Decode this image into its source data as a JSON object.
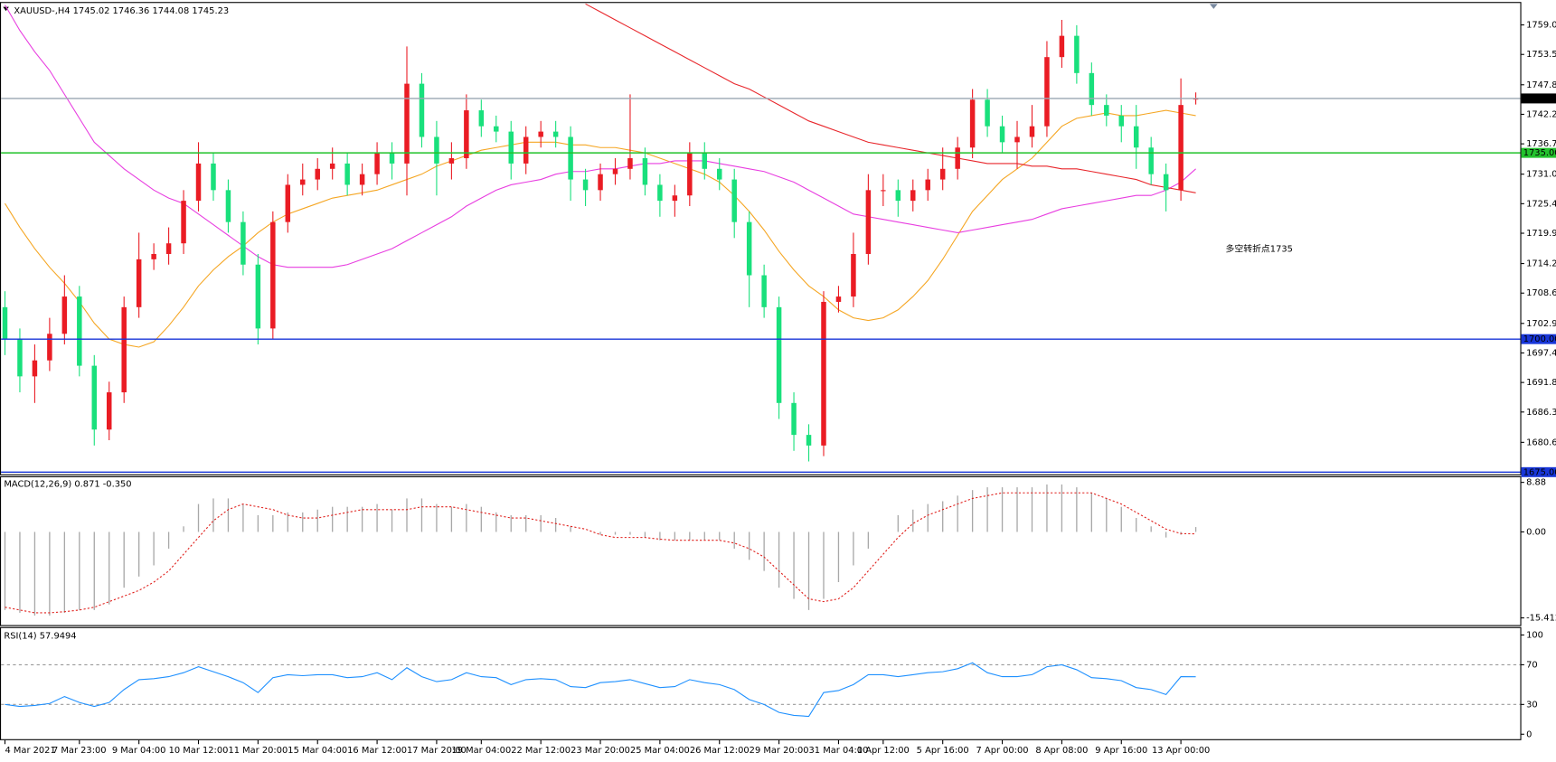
{
  "chart_data": [
    {
      "type": "candlestick",
      "title": "XAUUSD-,H4  1745.02 1746.36 1744.08 1745.23",
      "annotation": "多空转折点1735",
      "annotation_color": "#e8161c",
      "up_color": "#ea1c24",
      "down_color": "#19e07c",
      "categories": [
        "4 Mar 2021",
        null,
        null,
        null,
        null,
        "7 Mar 23:00",
        null,
        null,
        null,
        "9 Mar 04:00",
        null,
        null,
        null,
        "10 Mar 12:00",
        null,
        null,
        null,
        "11 Mar 20:00",
        null,
        null,
        null,
        "15 Mar 04:00",
        null,
        null,
        null,
        "16 Mar 12:00",
        null,
        null,
        null,
        "17 Mar 20:00",
        null,
        null,
        "19 Mar 04:00",
        null,
        null,
        null,
        "22 Mar 12:00",
        null,
        null,
        null,
        "23 Mar 20:00",
        null,
        null,
        null,
        "25 Mar 04:00",
        null,
        null,
        null,
        "26 Mar 12:00",
        null,
        null,
        null,
        "29 Mar 20:00",
        null,
        null,
        null,
        "31 Mar 04:00",
        null,
        null,
        "1 Apr 12:00",
        null,
        null,
        null,
        "5 Apr 16:00",
        null,
        null,
        null,
        "7 Apr 00:00",
        null,
        null,
        null,
        "8 Apr 08:00",
        null,
        null,
        null,
        "9 Apr 16:00",
        null,
        null,
        null,
        "13 Apr 00:00",
        null
      ],
      "open": [
        1706,
        1700,
        1693,
        1696,
        1701,
        1708,
        1695,
        1683,
        1690,
        1706,
        1715,
        1716,
        1718,
        1726,
        1733,
        1728,
        1722,
        1714,
        1702,
        1722,
        1729,
        1730,
        1732,
        1733,
        1729,
        1731,
        1735,
        1733,
        1748,
        1738,
        1733,
        1734,
        1743,
        1740,
        1739,
        1733,
        1738,
        1739,
        1738,
        1730,
        1728,
        1731,
        1732,
        1734,
        1729,
        1726,
        1727,
        1735,
        1732,
        1730,
        1722,
        1712,
        1706,
        1688,
        1682,
        1680,
        1707,
        1708,
        1716,
        1728,
        1728,
        1726,
        1728,
        1730,
        1732,
        1736,
        1745,
        1740,
        1737,
        1738,
        1740,
        1753,
        1757,
        1750,
        1744,
        1742,
        1740,
        1736,
        1731,
        1728,
        1745.02
      ],
      "high": [
        1709,
        1702,
        1699,
        1704,
        1712,
        1710,
        1697,
        1692,
        1708,
        1720,
        1718,
        1721,
        1728,
        1737,
        1735,
        1730,
        1724,
        1716,
        1724,
        1731,
        1733,
        1734,
        1736,
        1735,
        1733,
        1737,
        1737,
        1755,
        1750,
        1741,
        1737,
        1746,
        1745,
        1742,
        1741,
        1740,
        1741,
        1741,
        1740,
        1732,
        1733,
        1734,
        1746,
        1736,
        1731,
        1729,
        1737,
        1737,
        1734,
        1732,
        1724,
        1714,
        1708,
        1690,
        1684,
        1709,
        1710,
        1720,
        1731,
        1731,
        1730,
        1730,
        1732,
        1736,
        1738,
        1747,
        1747,
        1742,
        1741,
        1744,
        1756,
        1760,
        1759,
        1752,
        1746,
        1744,
        1744,
        1738,
        1733,
        1749,
        1746.36
      ],
      "low": [
        1697,
        1690,
        1688,
        1694,
        1699,
        1693,
        1680,
        1681,
        1688,
        1704,
        1713,
        1714,
        1716,
        1724,
        1726,
        1720,
        1712,
        1699,
        1700,
        1720,
        1727,
        1728,
        1730,
        1727,
        1727,
        1729,
        1730,
        1727,
        1736,
        1727,
        1730,
        1732,
        1738,
        1737,
        1730,
        1731,
        1736,
        1736,
        1726,
        1725,
        1726,
        1729,
        1730,
        1727,
        1723,
        1723,
        1725,
        1730,
        1728,
        1719,
        1706,
        1704,
        1685,
        1679,
        1677,
        1678,
        1705,
        1706,
        1714,
        1725,
        1723,
        1724,
        1726,
        1728,
        1730,
        1734,
        1738,
        1735,
        1732,
        1736,
        1738,
        1751,
        1748,
        1742,
        1740,
        1737,
        1732,
        1729,
        1724,
        1726,
        1744.08
      ],
      "close": [
        1700,
        1693,
        1696,
        1701,
        1708,
        1695,
        1683,
        1690,
        1706,
        1715,
        1716,
        1718,
        1726,
        1733,
        1728,
        1722,
        1714,
        1702,
        1722,
        1729,
        1730,
        1732,
        1733,
        1729,
        1731,
        1735,
        1733,
        1748,
        1738,
        1733,
        1734,
        1743,
        1740,
        1739,
        1733,
        1738,
        1739,
        1738,
        1730,
        1728,
        1731,
        1732,
        1734,
        1729,
        1726,
        1727,
        1735,
        1732,
        1730,
        1722,
        1712,
        1706,
        1688,
        1682,
        1680,
        1707,
        1708,
        1716,
        1728,
        1728,
        1726,
        1728,
        1730,
        1732,
        1736,
        1745,
        1740,
        1737,
        1738,
        1740,
        1753,
        1757,
        1750,
        1744,
        1742,
        1740,
        1736,
        1731,
        1728,
        1744,
        1745.23
      ],
      "lines": [
        {
          "color": "#f5a623",
          "values": [
            1725.5,
            1721,
            1717,
            1713.5,
            1710.5,
            1707,
            1703,
            1700,
            1699,
            1698.5,
            1699.5,
            1702.5,
            1706,
            1710,
            1713,
            1715.5,
            1717.5,
            1720,
            1722,
            1723.5,
            1724.5,
            1725.5,
            1726.5,
            1727,
            1727.5,
            1728,
            1729,
            1730,
            1731,
            1732.5,
            1733.5,
            1734.5,
            1735.5,
            1736,
            1736.5,
            1737,
            1737,
            1737,
            1736.5,
            1736.5,
            1736,
            1736,
            1735.5,
            1735,
            1734,
            1733,
            1732,
            1731,
            1729.5,
            1727,
            1724,
            1720.5,
            1716.5,
            1713,
            1710,
            1708,
            1705.5,
            1704,
            1703.5,
            1704,
            1705.5,
            1708,
            1711,
            1715,
            1719.5,
            1724,
            1727,
            1730,
            1732,
            1734,
            1737,
            1740,
            1741.5,
            1742,
            1742.5,
            1742,
            1742,
            1742.5,
            1743,
            1742.5,
            1742
          ]
        },
        {
          "color": "#e83ee0",
          "values": [
            1762.8,
            1758,
            1754,
            1750.5,
            1746,
            1741.5,
            1737,
            1734.5,
            1732,
            1730,
            1728,
            1726.5,
            1725.5,
            1723.5,
            1721.5,
            1719.5,
            1717.5,
            1715.5,
            1714,
            1713.5,
            1713.5,
            1713.5,
            1713.5,
            1714,
            1715,
            1716,
            1717,
            1718.5,
            1720,
            1721.5,
            1723,
            1725,
            1726.5,
            1728,
            1729,
            1729.5,
            1730,
            1731,
            1731.5,
            1731.5,
            1732,
            1732,
            1732.5,
            1733,
            1733,
            1733.5,
            1733.5,
            1733.5,
            1733,
            1732.5,
            1732,
            1731.5,
            1730.5,
            1729.5,
            1728,
            1726.5,
            1725,
            1723.5,
            1723,
            1722.5,
            1722,
            1721.5,
            1721,
            1720.5,
            1720,
            1720.5,
            1721,
            1721.5,
            1722,
            1722.5,
            1723.5,
            1724.5,
            1725,
            1725.5,
            1726,
            1726.5,
            1727,
            1727,
            1728,
            1729.5,
            1732
          ]
        },
        {
          "color": "#e8262b",
          "values": [
            null,
            null,
            null,
            null,
            null,
            null,
            null,
            null,
            null,
            null,
            null,
            null,
            null,
            null,
            null,
            null,
            null,
            null,
            null,
            null,
            null,
            null,
            null,
            null,
            null,
            null,
            null,
            null,
            null,
            null,
            null,
            null,
            null,
            null,
            null,
            null,
            null,
            null,
            null,
            1763,
            1761.5,
            1760,
            1758.5,
            1757,
            1755.5,
            1754,
            1752.5,
            1751,
            1749.5,
            1748,
            1747,
            1745.5,
            1744,
            1742.5,
            1741,
            1740,
            1739,
            1738,
            1737,
            1736.5,
            1736,
            1735.5,
            1735,
            1734.5,
            1734,
            1733.5,
            1733,
            1733,
            1733,
            1732.5,
            1732.5,
            1732,
            1732,
            1731.5,
            1731,
            1730.5,
            1730,
            1729,
            1728.5,
            1728,
            1727.5
          ]
        }
      ],
      "levels": [
        {
          "value": 1745.23,
          "label": "1745.23",
          "color": "#9aa6b2",
          "label_color": "#000000"
        },
        {
          "value": 1735,
          "label": "1735.00",
          "color": "#22c22c",
          "label_color": "#22c22c"
        },
        {
          "value": 1700,
          "label": "1700.00",
          "color": "#1836d8",
          "label_color": "#1836d8"
        },
        {
          "value": 1675,
          "label": "1675.00",
          "color": "#1836d8",
          "label_color": "#1836d8"
        }
      ],
      "ylim": [
        1674.6,
        1762.8
      ],
      "yticks": [
        {
          "value": 1759.05,
          "label": "1759.05"
        },
        {
          "value": 1753.5,
          "label": "1753.50"
        },
        {
          "value": 1747.8,
          "label": "1747.80"
        },
        {
          "value": 1742.25,
          "label": "1742.25"
        },
        {
          "value": 1736.7,
          "label": "1736.70"
        },
        {
          "value": 1731,
          "label": "1731.00"
        },
        {
          "value": 1725.45,
          "label": "1725.45"
        },
        {
          "value": 1719.9,
          "label": "1719.90"
        },
        {
          "value": 1714.2,
          "label": "1714.20"
        },
        {
          "value": 1708.65,
          "label": "1708.65"
        },
        {
          "value": 1702.95,
          "label": "1702.95"
        },
        {
          "value": 1697.4,
          "label": "1697.40"
        },
        {
          "value": 1691.85,
          "label": "1691.85"
        },
        {
          "value": 1686.3,
          "label": "1686.30"
        },
        {
          "value": 1680.6,
          "label": "1680.60"
        }
      ]
    },
    {
      "type": "macd",
      "title": "MACD(12,26,9) 0.871 -0.350",
      "color": "#a8a8a8",
      "signal_color": "#e0211d",
      "values": [
        -14,
        -14.5,
        -15,
        -15,
        -14.5,
        -14,
        -14,
        -13,
        -10,
        -8,
        -6,
        -3,
        1,
        5,
        6,
        6,
        5,
        3,
        3,
        3.5,
        3.5,
        4,
        4.5,
        4.5,
        4.5,
        5,
        4,
        6,
        6,
        5,
        4.5,
        5,
        4.5,
        3.5,
        3,
        3,
        3,
        2.5,
        1,
        0,
        -0.5,
        -0.5,
        -0.5,
        -1,
        -1.5,
        -1.5,
        -1.5,
        -1.5,
        -1.5,
        -3,
        -5,
        -7,
        -10,
        -12,
        -14,
        -12,
        -9,
        -6,
        -3,
        0,
        3,
        4,
        5,
        5.5,
        6.5,
        7.5,
        8,
        8,
        8,
        8,
        8.5,
        8.5,
        8,
        7,
        6,
        4.5,
        2.5,
        1,
        -1,
        -0.5,
        0.871
      ],
      "signal": [
        -13.5,
        -14,
        -14.5,
        -14.5,
        -14.3,
        -14,
        -13.5,
        -12.5,
        -11.5,
        -10.5,
        -9,
        -7,
        -4,
        -1,
        2,
        4,
        5,
        4.5,
        4,
        3,
        2.5,
        2.5,
        3,
        3.5,
        4,
        4,
        4,
        4,
        4.5,
        4.5,
        4.5,
        4,
        3.5,
        3,
        2.5,
        2.5,
        2,
        1.5,
        1,
        0.5,
        -0.5,
        -1,
        -1,
        -1,
        -1.3,
        -1.5,
        -1.5,
        -1.5,
        -1.5,
        -2,
        -3,
        -4.5,
        -7,
        -9.5,
        -12,
        -12.5,
        -12,
        -10,
        -7,
        -4,
        -1,
        1.5,
        3,
        4,
        5,
        6,
        6.5,
        7,
        7,
        7,
        7,
        7,
        7,
        7,
        6,
        5,
        3.5,
        2,
        0.5,
        -0.3,
        -0.35
      ],
      "ylim": [
        -16.7,
        9.8
      ],
      "yticks": [
        8.88,
        {
          "value": 0,
          "label": "0.00"
        },
        -15.412
      ]
    },
    {
      "type": "line",
      "title": "RSI(14) 57.9494",
      "color": "#1e90ff",
      "grid": true,
      "values": [
        30,
        28,
        29,
        31,
        38,
        32,
        28,
        32,
        45,
        55,
        56,
        58,
        62,
        68,
        63,
        58,
        52,
        42,
        57,
        60,
        59,
        60,
        60,
        57,
        58,
        62,
        55,
        67,
        58,
        53,
        55,
        62,
        58,
        57,
        50,
        55,
        56,
        55,
        48,
        47,
        52,
        53,
        55,
        51,
        47,
        48,
        55,
        52,
        50,
        45,
        35,
        30,
        22,
        19,
        18,
        42,
        44,
        50,
        60,
        60,
        58,
        60,
        62,
        63,
        66,
        72,
        62,
        58,
        58,
        60,
        68,
        70,
        65,
        57,
        56,
        54,
        47,
        45,
        40,
        58,
        57.9494
      ],
      "ylim": [
        -5,
        107
      ],
      "yticks": [
        100,
        70,
        30,
        0
      ]
    }
  ]
}
